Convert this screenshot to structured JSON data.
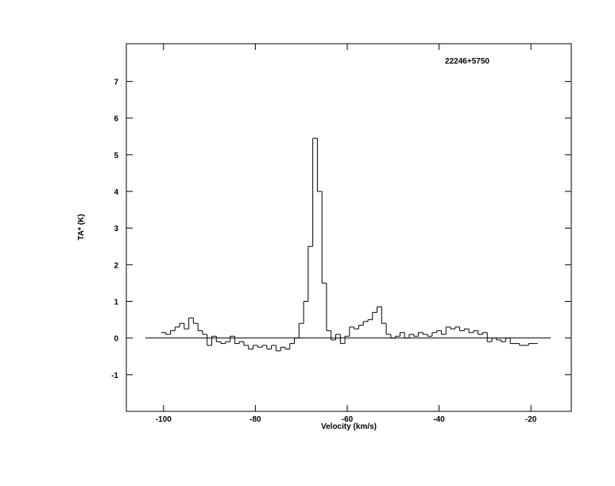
{
  "chart_data": {
    "type": "step",
    "title": "22246+5750",
    "xlabel": "Velocity (km/s)",
    "ylabel": "TA* (K)",
    "x": [
      -100,
      -99,
      -98,
      -97,
      -96,
      -95,
      -94,
      -93,
      -92,
      -91,
      -90,
      -89,
      -88,
      -87,
      -86,
      -85,
      -84,
      -83,
      -82,
      -81,
      -80,
      -79,
      -78,
      -77,
      -76,
      -75,
      -74,
      -73,
      -72,
      -71,
      -70,
      -69,
      -68,
      -67,
      -66,
      -65,
      -64,
      -63,
      -62,
      -61,
      -60,
      -59,
      -58,
      -57,
      -56,
      -55,
      -54,
      -53,
      -52,
      -51,
      -50,
      -49,
      -48,
      -47,
      -46,
      -45,
      -44,
      -43,
      -42,
      -41,
      -40,
      -39,
      -38,
      -37,
      -36,
      -35,
      -34,
      -33,
      -32,
      -31,
      -30,
      -29,
      -28,
      -27,
      -26,
      -25,
      -24,
      -23,
      -22,
      -21,
      -20,
      -19
    ],
    "values": [
      0.15,
      0.1,
      0.2,
      0.3,
      0.4,
      0.25,
      0.55,
      0.4,
      0.2,
      0.1,
      -0.2,
      0.05,
      -0.1,
      -0.15,
      -0.1,
      0.05,
      -0.15,
      -0.1,
      -0.2,
      -0.3,
      -0.2,
      -0.25,
      -0.2,
      -0.3,
      -0.2,
      -0.35,
      -0.25,
      -0.3,
      -0.15,
      0.0,
      0.4,
      1.0,
      2.5,
      5.45,
      4.0,
      1.5,
      0.2,
      -0.05,
      0.1,
      -0.15,
      0.05,
      0.3,
      0.25,
      0.35,
      0.45,
      0.5,
      0.7,
      0.85,
      0.4,
      0.1,
      0.0,
      0.05,
      0.15,
      0.0,
      0.1,
      0.05,
      0.15,
      0.1,
      0.05,
      0.15,
      0.2,
      0.1,
      0.3,
      0.25,
      0.3,
      0.2,
      0.25,
      0.15,
      0.2,
      0.1,
      0.15,
      -0.1,
      0.0,
      -0.05,
      -0.1,
      0.0,
      -0.15,
      -0.15,
      -0.2,
      -0.2,
      -0.15,
      -0.15
    ],
    "color": "#000000",
    "baseline": 0,
    "xlim": [
      -108.1,
      -11.2
    ],
    "xticks": [
      -100,
      -80,
      -60,
      -40,
      -20
    ],
    "ylim": [
      -2,
      8.03
    ],
    "yticks": [
      -1,
      0,
      1,
      2,
      3,
      4,
      5,
      6,
      7
    ]
  }
}
